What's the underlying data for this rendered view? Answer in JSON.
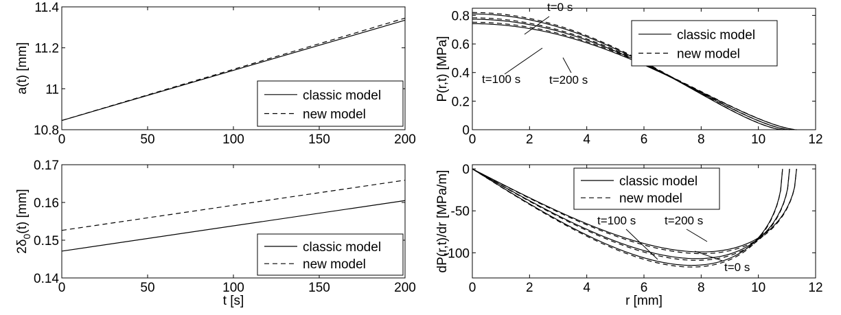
{
  "chart_data": [
    {
      "type": "line",
      "xlabel": "",
      "ylabel": "a(t) [mm]",
      "xlim": [
        0,
        200
      ],
      "ylim": [
        10.8,
        11.4
      ],
      "xticks": [
        "0",
        "50",
        "100",
        "150",
        "200"
      ],
      "yticks": [
        "10.8",
        "11",
        "11.2",
        "11.4"
      ],
      "legend_position": "bottom-right",
      "grid": false,
      "series": [
        {
          "name": "classic model",
          "style": "solid",
          "x": [
            0,
            200
          ],
          "y": [
            10.845,
            11.335
          ]
        },
        {
          "name": "new model",
          "style": "dashed",
          "x": [
            0,
            200
          ],
          "y": [
            10.845,
            11.345
          ]
        }
      ]
    },
    {
      "type": "line",
      "xlabel": "t [s]",
      "ylabel": "2δ0(t) [mm]",
      "ylabel_parts": {
        "pre": "2δ",
        "sub": "0",
        "post": "(t) [mm]"
      },
      "xlim": [
        0,
        200
      ],
      "ylim": [
        0.14,
        0.17
      ],
      "xticks": [
        "0",
        "50",
        "100",
        "150",
        "200"
      ],
      "yticks": [
        "0.14",
        "0.15",
        "0.16",
        "0.17"
      ],
      "legend_position": "bottom-right",
      "grid": false,
      "series": [
        {
          "name": "classic model",
          "style": "solid",
          "x": [
            0,
            200
          ],
          "y": [
            0.1471,
            0.1605
          ]
        },
        {
          "name": "new model",
          "style": "dashed",
          "x": [
            0,
            200
          ],
          "y": [
            0.1526,
            0.1659
          ]
        }
      ]
    },
    {
      "type": "line",
      "xlabel": "",
      "ylabel": "P(r,t) [MPa]",
      "xlim": [
        0,
        12
      ],
      "ylim": [
        0,
        0.85
      ],
      "xticks": [
        "0",
        "2",
        "4",
        "6",
        "8",
        "10",
        "12"
      ],
      "yticks": [
        "0",
        "0.2",
        "0.4",
        "0.6",
        "0.8"
      ],
      "legend_position": "top-right",
      "grid": false,
      "legend": [
        {
          "name": "classic model",
          "style": "solid"
        },
        {
          "name": "new model",
          "style": "dashed"
        }
      ],
      "curves": [
        {
          "label": "t=0 s",
          "a": 10.845,
          "classic_peak": 0.81,
          "new_peak": 0.82
        },
        {
          "label": "t=100 s",
          "a": 11.09,
          "classic_peak": 0.773,
          "new_peak": 0.783
        },
        {
          "label": "t=200 s",
          "a": 11.335,
          "classic_peak": 0.742,
          "new_peak": 0.752
        }
      ],
      "annotations": [
        "t=0 s",
        "t=100 s",
        "t=200 s"
      ]
    },
    {
      "type": "line",
      "xlabel": "r [mm]",
      "ylabel": "dP(r,t)/dr [MPa/m]",
      "xlim": [
        0,
        12
      ],
      "ylim": [
        -130,
        5
      ],
      "xticks": [
        "0",
        "2",
        "4",
        "6",
        "8",
        "10",
        "12"
      ],
      "yticks": [
        "-100",
        "-50",
        "0"
      ],
      "legend_position": "top-right",
      "grid": false,
      "legend": [
        {
          "name": "classic model",
          "style": "solid"
        },
        {
          "name": "new model",
          "style": "dashed"
        }
      ],
      "curves": [
        {
          "label": "t=0 s",
          "a": 10.845,
          "classic_min": -115,
          "new_min": -117
        },
        {
          "label": "t=100 s",
          "a": 11.09,
          "classic_min": -107,
          "new_min": -109
        },
        {
          "label": "t=200 s",
          "a": 11.335,
          "classic_min": -99,
          "new_min": -101
        }
      ],
      "annotations": [
        "t=100 s",
        "t=200 s",
        "t=0 s"
      ]
    }
  ]
}
